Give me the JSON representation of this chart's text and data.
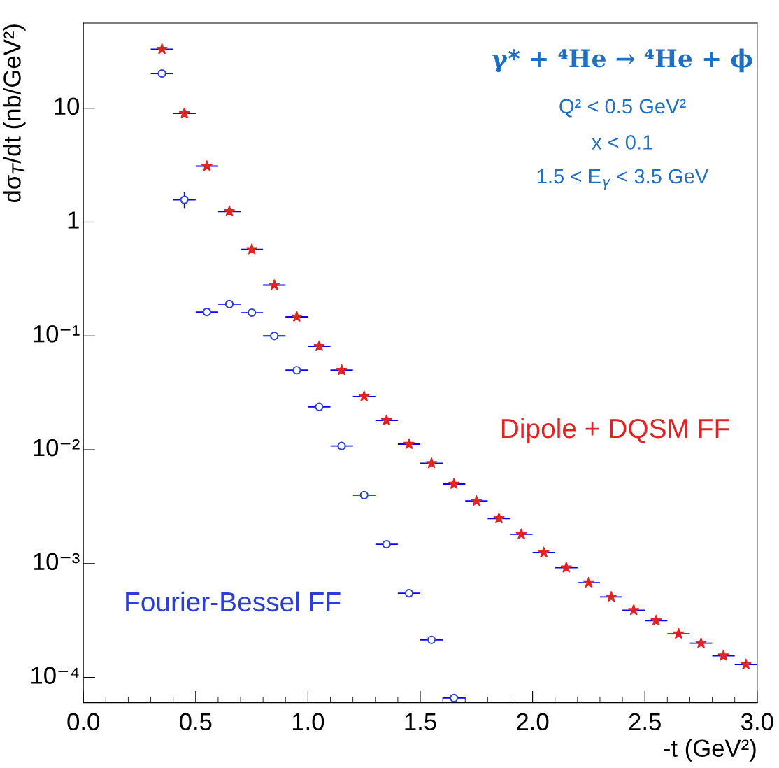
{
  "chart_data": {
    "type": "scatter",
    "xlabel": "-t (GeV²)",
    "ylabel": "dσ$_{T}$/dt (nb/GeV²)",
    "log": "y",
    "xlim": [
      0.0,
      3.0
    ],
    "xticks": [
      {
        "value": 0.0,
        "label": "0.0"
      },
      {
        "value": 0.5,
        "label": "0.5"
      },
      {
        "value": 1.0,
        "label": "1.0"
      },
      {
        "value": 1.5,
        "label": "1.5"
      },
      {
        "value": 2.0,
        "label": "2.0"
      },
      {
        "value": 2.5,
        "label": "2.5"
      },
      {
        "value": 3.0,
        "label": "3.0"
      }
    ],
    "ylim": [
      6e-05,
      56
    ],
    "yticks": [
      {
        "value": 0.0001,
        "label": "10⁻⁴"
      },
      {
        "value": 0.001,
        "label": "10⁻³"
      },
      {
        "value": 0.01,
        "label": "10⁻²"
      },
      {
        "value": 0.1,
        "label": "10⁻¹"
      },
      1,
      10
    ],
    "grid": false,
    "annotations": [
      "γ* + ⁴He → ⁴He + ϕ",
      "Q² < 0.5 GeV²",
      "x < 0.1",
      "1.5 < E$_{γ}$ < 3.5 GeV"
    ],
    "series": [
      {
        "name": "Dipole + DQSM FF",
        "color": "#e02424",
        "marker": "star",
        "x": [
          0.35,
          0.45,
          0.55,
          0.65,
          0.75,
          0.85,
          0.95,
          1.05,
          1.15,
          1.25,
          1.35,
          1.45,
          1.55,
          1.65,
          1.75,
          1.85,
          1.95,
          2.05,
          2.15,
          2.25,
          2.35,
          2.45,
          2.55,
          2.65,
          2.75,
          2.85,
          2.95
        ],
        "values": [
          33,
          9.0,
          3.1,
          1.24,
          0.575,
          0.28,
          0.147,
          0.081,
          0.05,
          0.0294,
          0.0181,
          0.0112,
          0.0076,
          0.005,
          0.00355,
          0.00249,
          0.00181,
          0.00125,
          0.00092,
          0.00068,
          0.00051,
          0.00039,
          0.000316,
          0.000242,
          0.0002,
          0.000155,
          0.00013
        ],
        "xerrors": [
          0.05,
          0.05,
          0.05,
          0.05,
          0.05,
          0.05,
          0.05,
          0.05,
          0.05,
          0.05,
          0.05,
          0.05,
          0.05,
          0.05,
          0.05,
          0.05,
          0.05,
          0.05,
          0.05,
          0.05,
          0.05,
          0.05,
          0.05,
          0.05,
          0.05,
          0.05,
          0.05
        ]
      },
      {
        "name": "Fourier-Bessel FF",
        "color": "#2a3fd8",
        "marker": "circle",
        "x": [
          0.35,
          0.45,
          0.55,
          0.65,
          0.75,
          0.85,
          0.95,
          1.05,
          1.15,
          1.25,
          1.35,
          1.45,
          1.55,
          1.65
        ],
        "values": [
          20.2,
          1.57,
          0.162,
          0.19,
          0.16,
          0.1,
          0.05,
          0.0238,
          0.0108,
          0.004,
          0.00148,
          0.00055,
          0.000214,
          6.6e-05
        ],
        "errors": [
          null,
          [
            1.31,
            1.83
          ],
          null,
          null,
          null,
          null,
          null,
          null,
          null,
          null,
          null,
          null,
          null,
          null
        ],
        "xerrors": [
          0.05,
          0.05,
          0.05,
          0.05,
          0.05,
          0.05,
          0.05,
          0.05,
          0.05,
          0.05,
          0.05,
          0.05,
          0.05,
          0.05
        ]
      }
    ]
  }
}
